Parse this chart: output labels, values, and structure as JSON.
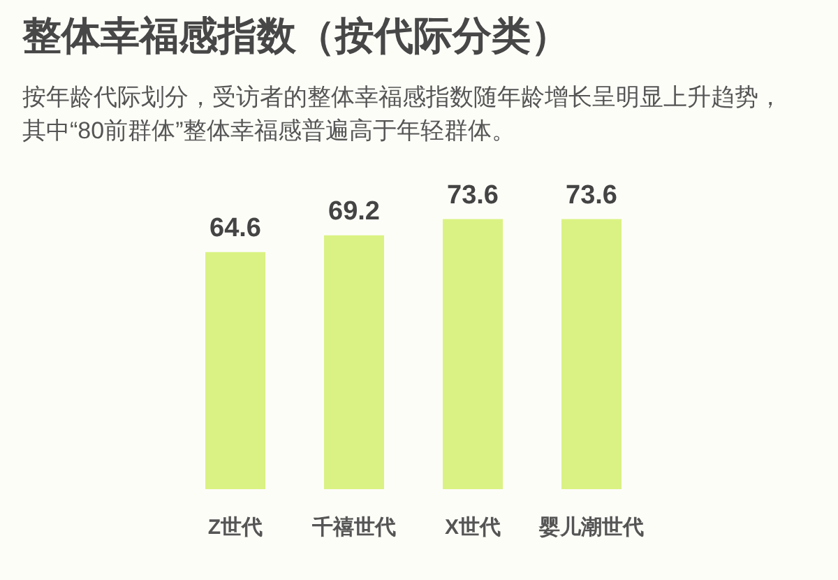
{
  "chart_data": {
    "type": "bar",
    "title": "整体幸福感指数（按代际分类）",
    "subtitle": "按年龄代际划分，受访者的整体幸福感指数随年龄增长呈明显上升趋势，其中“80前群体”整体幸福感普遍高于年轻群体。",
    "categories": [
      "Z世代",
      "千禧世代",
      "X世代",
      "婴儿潮世代"
    ],
    "values": [
      64.6,
      69.2,
      73.6,
      73.6
    ],
    "color": "#daf283",
    "data_labels": true,
    "tick_labels": "x"
  }
}
